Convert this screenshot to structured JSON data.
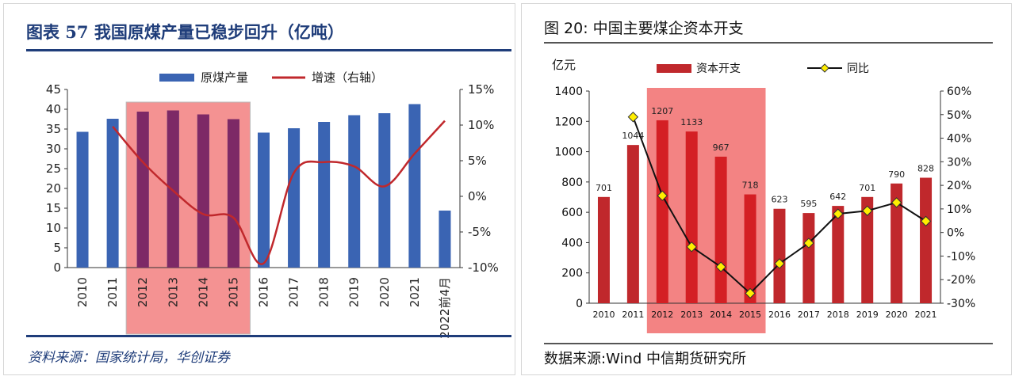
{
  "left": {
    "title": "图表 57 我国原煤产量已稳步回升（亿吨）",
    "source": "资料来源：国家统计局，华创证券",
    "legend": [
      "原煤产量",
      "增速（右轴）"
    ],
    "colors": {
      "bar": "#3a64b3",
      "line": "#c0282c",
      "highlight": "#f06464"
    },
    "y_ticks": [
      "0",
      "5",
      "10",
      "15",
      "20",
      "25",
      "30",
      "35",
      "40",
      "45"
    ],
    "y2_ticks": [
      "-10%",
      "-5%",
      "0%",
      "5%",
      "10%",
      "15%"
    ]
  },
  "right": {
    "title": "图 20:    中国主要煤企资本开支",
    "source": "数据来源:Wind 中信期货研究所",
    "unit": "亿元",
    "legend": [
      "资本开支",
      "同比"
    ],
    "colors": {
      "bar": "#c0282c",
      "line": "#111111",
      "marker": "#ffee00",
      "highlight": "#f06464"
    },
    "y_ticks": [
      "0",
      "200",
      "400",
      "600",
      "800",
      "1000",
      "1200",
      "1400"
    ],
    "y2_ticks": [
      "-30%",
      "-20%",
      "-10%",
      "0%",
      "10%",
      "20%",
      "30%",
      "40%",
      "50%",
      "60%"
    ]
  },
  "chart_data": [
    {
      "type": "bar",
      "title": "我国原煤产量已稳步回升（亿吨）",
      "categories": [
        "2010",
        "2011",
        "2012",
        "2013",
        "2014",
        "2015",
        "2016",
        "2017",
        "2018",
        "2019",
        "2020",
        "2021",
        "2022前4月"
      ],
      "series": [
        {
          "name": "原煤产量",
          "type": "bar",
          "axis": "left",
          "values": [
            34.3,
            37.6,
            39.4,
            39.7,
            38.7,
            37.5,
            34.1,
            35.2,
            36.8,
            38.5,
            39.0,
            41.3,
            14.4
          ]
        },
        {
          "name": "增速（右轴）",
          "type": "line",
          "axis": "right",
          "values": [
            null,
            9.8,
            4.8,
            0.8,
            -2.5,
            -3.0,
            -9.4,
            3.3,
            4.8,
            4.2,
            1.4,
            6.0,
            10.6
          ]
        }
      ],
      "ylim": [
        0,
        45
      ],
      "y2lim": [
        -10,
        15
      ],
      "highlight_range": [
        "2012",
        "2015"
      ],
      "legend_position": "top"
    },
    {
      "type": "bar",
      "title": "中国主要煤企资本开支",
      "categories": [
        "2010",
        "2011",
        "2012",
        "2013",
        "2014",
        "2015",
        "2016",
        "2017",
        "2018",
        "2019",
        "2020",
        "2021"
      ],
      "series": [
        {
          "name": "资本开支",
          "type": "bar",
          "axis": "left",
          "values": [
            701,
            1044,
            1207,
            1133,
            967,
            718,
            623,
            595,
            642,
            701,
            790,
            828
          ]
        },
        {
          "name": "同比",
          "type": "line",
          "axis": "right",
          "values": [
            null,
            49.0,
            15.6,
            -6.1,
            -14.6,
            -25.8,
            -13.2,
            -4.5,
            7.9,
            9.2,
            12.7,
            4.8
          ]
        }
      ],
      "ylabel": "亿元",
      "ylim": [
        0,
        1400
      ],
      "y2lim": [
        -30,
        60
      ],
      "highlight_range": [
        "2012",
        "2015"
      ],
      "data_labels": true,
      "legend_position": "top"
    }
  ]
}
